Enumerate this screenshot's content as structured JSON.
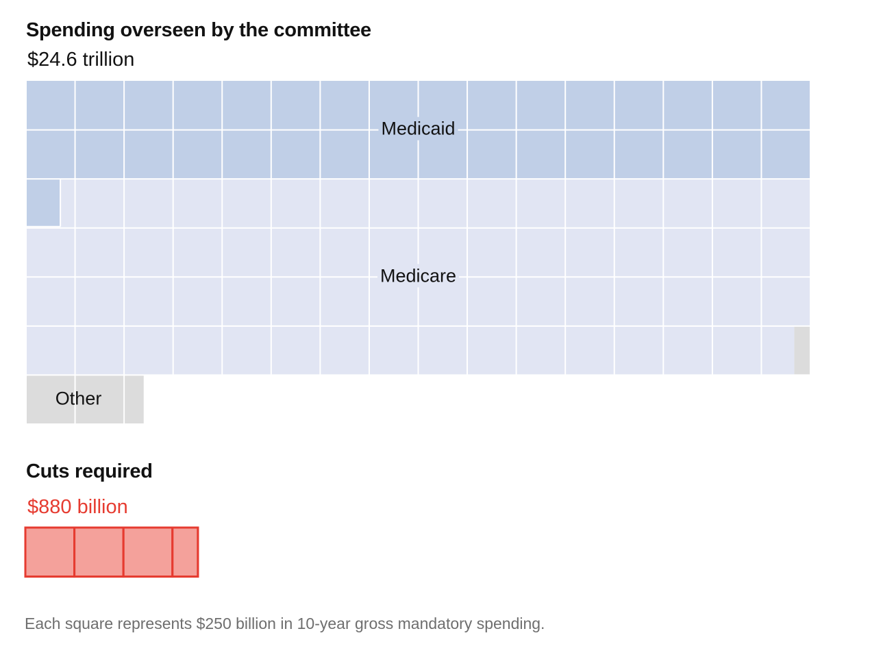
{
  "title": "Spending overseen by the committee",
  "total_label": "$24.6 trillion",
  "cuts": {
    "title": "Cuts required",
    "total_label": "$880 billion",
    "value_billion": 880,
    "squares": 3.52
  },
  "note": "Each square represents $250 billion in 10-year gross mandatory spending.",
  "colors": {
    "medicaid": "#c0cfe7",
    "medicare": "#e1e5f3",
    "other": "#dcdcdc",
    "cuts_fill": "#f4a19b",
    "cuts_stroke": "#e63b30",
    "gridline": "#ffffff"
  },
  "chart_data": [
    {
      "type": "waffle",
      "title": "Spending overseen by the committee",
      "subtitle": "$24.6 trillion",
      "unit_per_square": "$250 billion",
      "squares_per_row": 16,
      "categories": [
        {
          "name": "Medicaid",
          "squares": 32.7,
          "color": "#c0cfe7",
          "label": "Medicaid"
        },
        {
          "name": "Medicare",
          "squares": 62.97,
          "color": "#e1e5f3",
          "label": "Medicare"
        },
        {
          "name": "Other",
          "squares": 2.73,
          "color": "#dcdcdc",
          "label": "Other"
        }
      ]
    },
    {
      "type": "waffle",
      "title": "Cuts required",
      "subtitle": "$880 billion",
      "unit_per_square": "$250 billion",
      "squares_per_row": 16,
      "categories": [
        {
          "name": "Cuts required",
          "squares": 3.52,
          "color": "#f4a19b"
        }
      ]
    }
  ]
}
